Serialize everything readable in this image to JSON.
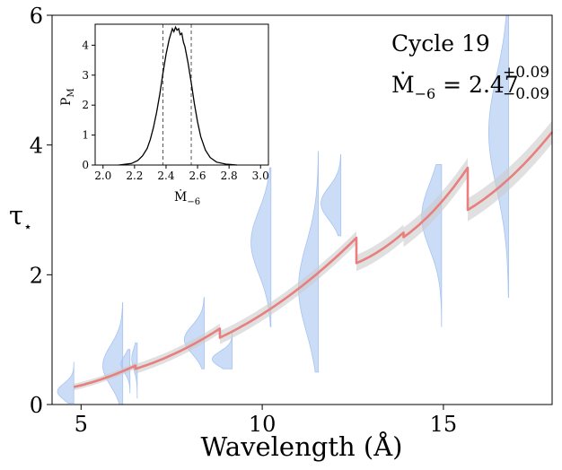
{
  "chart_data": [
    {
      "type": "line",
      "title": "",
      "xlabel": "Wavelength (Å)",
      "ylabel": "τ",
      "ylabel_sub": "⋆",
      "xlim": [
        4.2,
        18.0
      ],
      "ylim": [
        0,
        6
      ],
      "xticks": [
        5,
        10,
        15
      ],
      "yticks": [
        0,
        2,
        4,
        6
      ],
      "xtick_labels": [
        "5",
        "10",
        "15"
      ],
      "ytick_labels": [
        "0",
        "2",
        "4",
        "6"
      ],
      "annotation": {
        "cycle": "Cycle 19",
        "mdot_label": "Ṁ",
        "mdot_sub": "−6",
        "mdot_equals": " = ",
        "mdot_value": "2.47",
        "err_plus": "+0.09",
        "err_minus": "−0.09"
      },
      "series": [
        {
          "segments": [
            {
              "x": [
                4.8,
                6.5
              ],
              "y": [
                0.27,
                0.6
              ]
            },
            {
              "x": [
                6.5,
                8.83
              ],
              "y": [
                0.55,
                1.17
              ]
            },
            {
              "x": [
                8.83,
                12.6
              ],
              "y": [
                1.03,
                2.57
              ]
            },
            {
              "x": [
                12.6,
                13.9
              ],
              "y": [
                2.18,
                2.65
              ]
            },
            {
              "x": [
                13.9,
                15.67
              ],
              "y": [
                2.58,
                3.65
              ]
            },
            {
              "x": [
                15.67,
                18.0
              ],
              "y": [
                3.0,
                4.2
              ]
            }
          ],
          "color": "#e87f7f"
        }
      ],
      "violins": [
        {
          "x": 4.8,
          "center": 0.2,
          "min": 0.02,
          "max": 0.65,
          "width": 0.45,
          "side": "left"
        },
        {
          "x": 6.15,
          "center": 0.6,
          "min": 0.0,
          "max": 1.57,
          "width": 0.55,
          "side": "left"
        },
        {
          "x": 6.35,
          "center": 0.62,
          "min": 0.18,
          "max": 0.85,
          "width": 0.25,
          "side": "left"
        },
        {
          "x": 6.55,
          "center": 0.7,
          "min": 0.1,
          "max": 0.95,
          "width": 0.15,
          "side": "left"
        },
        {
          "x": 8.4,
          "center": 1.0,
          "min": 0.55,
          "max": 1.65,
          "width": 0.55,
          "side": "left"
        },
        {
          "x": 9.17,
          "center": 0.7,
          "min": 0.55,
          "max": 1.15,
          "width": 0.55,
          "side": "left"
        },
        {
          "x": 10.24,
          "center": 2.5,
          "min": 1.2,
          "max": 3.65,
          "width": 0.55,
          "side": "left"
        },
        {
          "x": 11.55,
          "center": 1.8,
          "min": 0.5,
          "max": 3.9,
          "width": 0.55,
          "side": "left"
        },
        {
          "x": 12.17,
          "center": 3.1,
          "min": 2.6,
          "max": 3.85,
          "width": 0.55,
          "side": "left"
        },
        {
          "x": 14.95,
          "center": 2.9,
          "min": 1.2,
          "max": 3.7,
          "width": 0.55,
          "side": "left"
        },
        {
          "x": 16.8,
          "center": 4.2,
          "min": 1.65,
          "max": 6.0,
          "width": 0.55,
          "side": "left"
        }
      ]
    },
    {
      "type": "line",
      "title": "",
      "xlabel": "Ṁ",
      "xlabel_sub": "−6",
      "ylabel": "P",
      "ylabel_sub": "M",
      "xlim": [
        1.95,
        3.05
      ],
      "ylim": [
        0,
        4.7
      ],
      "xticks": [
        2.0,
        2.2,
        2.4,
        2.6,
        2.8,
        3.0
      ],
      "yticks": [
        0,
        1,
        2,
        3,
        4
      ],
      "xtick_labels": [
        "2.0",
        "2.2",
        "2.4",
        "2.6",
        "2.8",
        "3.0"
      ],
      "ytick_labels": [
        "0",
        "1",
        "2",
        "3",
        "4"
      ],
      "vlines": [
        2.38,
        2.56
      ],
      "series": [
        {
          "x": [
            2.1,
            2.18,
            2.22,
            2.25,
            2.28,
            2.3,
            2.32,
            2.34,
            2.36,
            2.38,
            2.4,
            2.42,
            2.44,
            2.45,
            2.46,
            2.47,
            2.48,
            2.49,
            2.5,
            2.51,
            2.52,
            2.54,
            2.56,
            2.58,
            2.6,
            2.62,
            2.65,
            2.68,
            2.72,
            2.78,
            2.85
          ],
          "y": [
            0.0,
            0.05,
            0.15,
            0.3,
            0.55,
            0.85,
            1.25,
            1.75,
            2.35,
            3.05,
            3.7,
            4.2,
            4.55,
            4.45,
            4.6,
            4.5,
            4.55,
            4.35,
            4.4,
            4.1,
            3.95,
            3.4,
            2.75,
            2.05,
            1.45,
            0.95,
            0.5,
            0.25,
            0.1,
            0.03,
            0.0
          ]
        }
      ]
    }
  ]
}
